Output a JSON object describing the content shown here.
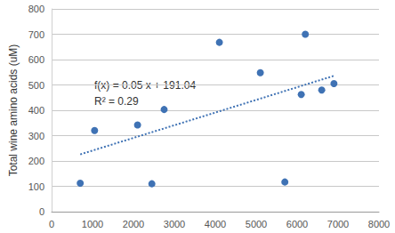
{
  "chart_data": {
    "type": "scatter",
    "y_label": "Total wine amino acids (uM)",
    "xlim": [
      0,
      8000
    ],
    "xticks": [
      0,
      1000,
      2000,
      3000,
      4000,
      5000,
      6000,
      7000,
      8000
    ],
    "ylim": [
      0,
      800
    ],
    "yticks": [
      0,
      100,
      200,
      300,
      400,
      500,
      600,
      700,
      800
    ],
    "grid": true,
    "annotations": [
      "f(x) = 0.05 x + 191.04",
      "R² = 0.29"
    ],
    "series": [
      {
        "type": "scatter",
        "marker": "circle",
        "color": "#3f72b4",
        "x": [
          700,
          1050,
          2100,
          2450,
          2750,
          4100,
          5100,
          5700,
          6100,
          6200,
          6600,
          6900
        ],
        "values": [
          112,
          320,
          342,
          110,
          403,
          668,
          548,
          117,
          462,
          700,
          480,
          505
        ]
      },
      {
        "type": "line",
        "line_style": "dotted",
        "color": "#3f72b4",
        "x": [
          700,
          6900
        ],
        "values": [
          226,
          536
        ]
      }
    ]
  }
}
